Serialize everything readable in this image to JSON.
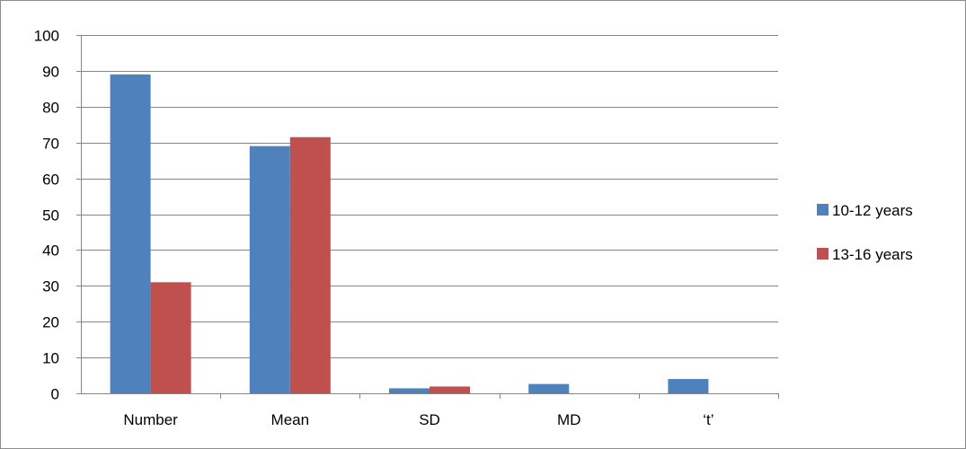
{
  "chart_data": {
    "type": "bar",
    "categories": [
      "Number",
      "Mean",
      "SD",
      "MD",
      "‘t’"
    ],
    "series": [
      {
        "name": "10-12 years",
        "color": "#4f81bd",
        "values": [
          89,
          69,
          1.4,
          2.6,
          4
        ]
      },
      {
        "name": "13-16 years",
        "color": "#c0504d",
        "values": [
          31,
          71.5,
          1.9,
          0,
          0
        ]
      }
    ],
    "ylim": [
      0,
      100
    ],
    "yticks": [
      0,
      10,
      20,
      30,
      40,
      50,
      60,
      70,
      80,
      90,
      100
    ],
    "grid": true,
    "legend_position": "right",
    "title": "",
    "xlabel": "",
    "ylabel": ""
  }
}
